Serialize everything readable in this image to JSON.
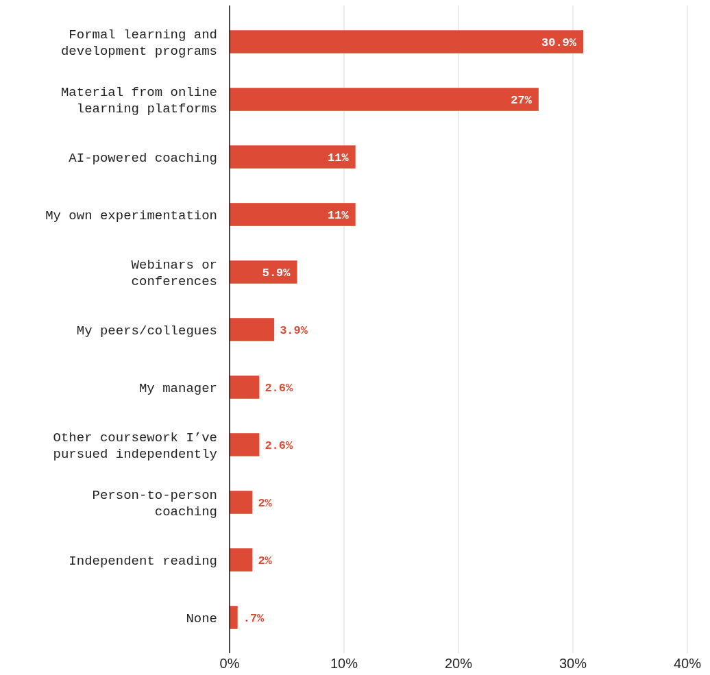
{
  "chart_data": {
    "type": "bar",
    "orientation": "horizontal",
    "categories": [
      "Formal learning and development programs",
      "Material from online learning platforms",
      "AI-powered coaching",
      "My own experimentation",
      "Webinars or conferences",
      "My peers/collegues",
      "My manager",
      "Other coursework I’ve pursued independently",
      "Person-to-person coaching",
      "Independent reading",
      "None"
    ],
    "values": [
      30.9,
      27,
      11,
      11,
      5.9,
      3.9,
      2.6,
      2.6,
      2,
      2,
      0.7
    ],
    "value_labels": [
      "30.9%",
      "27%",
      "11%",
      "11%",
      "5.9%",
      "3.9%",
      "2.6%",
      "2.6%",
      "2%",
      "2%",
      ".7%"
    ],
    "color": "#dd4a35",
    "xlim": [
      0,
      40
    ],
    "xticks": [
      {
        "value": 0,
        "label": "0%"
      },
      {
        "value": 10,
        "label": "10%"
      },
      {
        "value": 20,
        "label": "20%"
      },
      {
        "value": 30,
        "label": "30%"
      },
      {
        "value": 40,
        "label": "40%"
      }
    ],
    "grid": "x"
  }
}
